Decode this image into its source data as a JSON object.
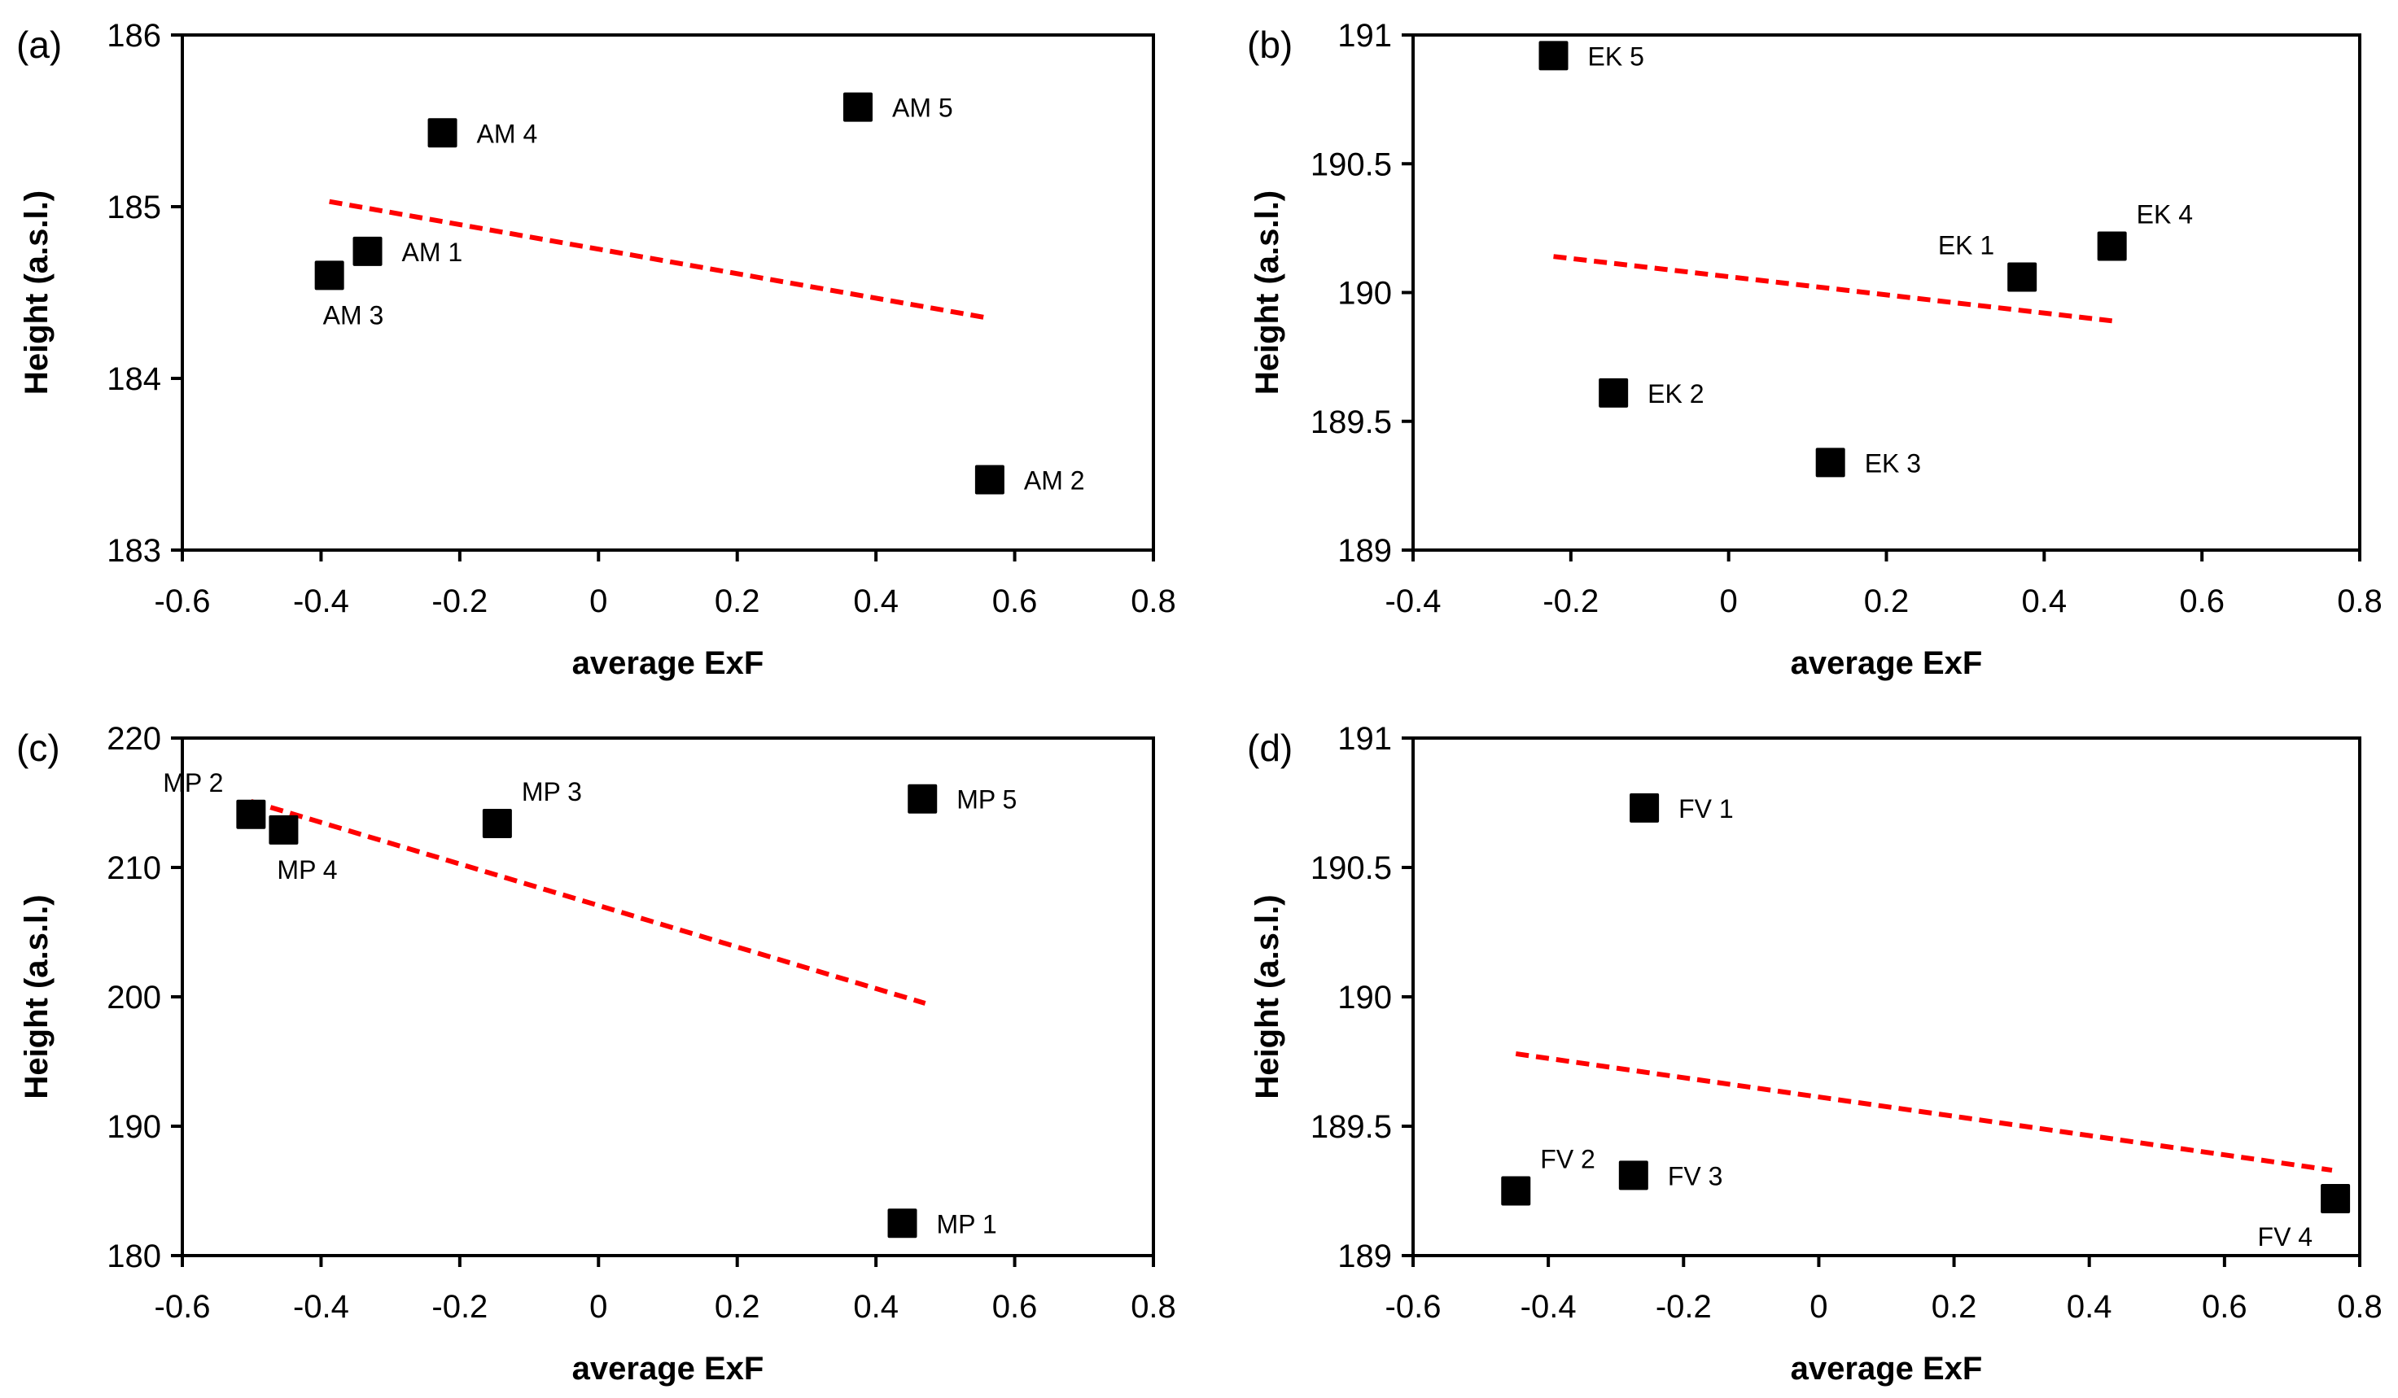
{
  "chart_data": [
    {
      "panel": "(a)",
      "type": "scatter",
      "xlabel": "average ExF",
      "ylabel": "Height (a.s.l.)",
      "xlim": [
        -0.6,
        0.8
      ],
      "ylim": [
        183,
        186
      ],
      "xticks": [
        "-0.6",
        "-0.4",
        "-0.2",
        "0",
        "0.2",
        "0.4",
        "0.6",
        "0.8"
      ],
      "xtick_values": [
        -0.6,
        -0.4,
        -0.2,
        0,
        0.2,
        0.4,
        0.6,
        0.8
      ],
      "yticks": [
        "183",
        "184",
        "185",
        "186"
      ],
      "ytick_values": [
        183,
        184,
        185,
        186
      ],
      "grid": false,
      "marker": "square",
      "marker_color": "#000000",
      "points": [
        {
          "label": "AM 1",
          "x": -0.333,
          "y": 184.74,
          "label_pos": "right"
        },
        {
          "label": "AM 2",
          "x": 0.564,
          "y": 183.41,
          "label_pos": "right"
        },
        {
          "label": "AM 3",
          "x": -0.388,
          "y": 184.6,
          "label_pos": "below"
        },
        {
          "label": "AM 4",
          "x": -0.225,
          "y": 185.43,
          "label_pos": "right"
        },
        {
          "label": "AM 5",
          "x": 0.374,
          "y": 185.58,
          "label_pos": "right"
        }
      ],
      "trendline": {
        "color": "#ff0000",
        "style": "dashed",
        "x": [
          -0.388,
          0.564
        ],
        "y": [
          185.03,
          184.35
        ]
      }
    },
    {
      "panel": "(b)",
      "type": "scatter",
      "xlabel": "average ExF",
      "ylabel": "Height (a.s.l.)",
      "xlim": [
        -0.4,
        0.8
      ],
      "ylim": [
        189,
        191
      ],
      "xticks": [
        "-0.4",
        "-0.2",
        "0",
        "0.2",
        "0.4",
        "0.6",
        "0.8"
      ],
      "xtick_values": [
        -0.4,
        -0.2,
        0,
        0.2,
        0.4,
        0.6,
        0.8
      ],
      "yticks": [
        "189",
        "189.5",
        "190",
        "190.5",
        "191"
      ],
      "ytick_values": [
        189,
        189.5,
        190,
        190.5,
        191
      ],
      "grid": false,
      "marker": "square",
      "marker_color": "#000000",
      "points": [
        {
          "label": "EK 1",
          "x": 0.372,
          "y": 190.06,
          "label_pos": "upper-left"
        },
        {
          "label": "EK 2",
          "x": -0.146,
          "y": 189.61,
          "label_pos": "right"
        },
        {
          "label": "EK 3",
          "x": 0.129,
          "y": 189.34,
          "label_pos": "right"
        },
        {
          "label": "EK 4",
          "x": 0.486,
          "y": 190.18,
          "label_pos": "upper-right"
        },
        {
          "label": "EK 5",
          "x": -0.222,
          "y": 190.92,
          "label_pos": "right"
        }
      ],
      "trendline": {
        "color": "#ff0000",
        "style": "dashed",
        "x": [
          -0.222,
          0.486
        ],
        "y": [
          190.14,
          189.89
        ]
      }
    },
    {
      "panel": "(c)",
      "type": "scatter",
      "xlabel": "average ExF",
      "ylabel": "Height (a.s.l.)",
      "xlim": [
        -0.6,
        0.8
      ],
      "ylim": [
        180,
        220
      ],
      "xticks": [
        "-0.6",
        "-0.4",
        "-0.2",
        "0",
        "0.2",
        "0.4",
        "0.6",
        "0.8"
      ],
      "xtick_values": [
        -0.6,
        -0.4,
        -0.2,
        0,
        0.2,
        0.4,
        0.6,
        0.8
      ],
      "yticks": [
        "180",
        "190",
        "200",
        "210",
        "220"
      ],
      "ytick_values": [
        180,
        190,
        200,
        210,
        220
      ],
      "grid": false,
      "marker": "square",
      "marker_color": "#000000",
      "points": [
        {
          "label": "MP 1",
          "x": 0.438,
          "y": 182.5,
          "label_pos": "right"
        },
        {
          "label": "MP 2",
          "x": -0.501,
          "y": 214.1,
          "label_pos": "upper-left"
        },
        {
          "label": "MP 3",
          "x": -0.146,
          "y": 213.4,
          "label_pos": "upper-right"
        },
        {
          "label": "MP 4",
          "x": -0.454,
          "y": 212.9,
          "label_pos": "below"
        },
        {
          "label": "MP 5",
          "x": 0.467,
          "y": 215.3,
          "label_pos": "right"
        }
      ],
      "trendline": {
        "color": "#ff0000",
        "style": "dashed",
        "x": [
          -0.501,
          0.471
        ],
        "y": [
          215.1,
          199.5
        ]
      }
    },
    {
      "panel": "(d)",
      "type": "scatter",
      "xlabel": "average ExF",
      "ylabel": "Height (a.s.l.)",
      "xlim": [
        -0.6,
        0.8
      ],
      "ylim": [
        189,
        191
      ],
      "xticks": [
        "-0.6",
        "-0.4",
        "-0.2",
        "0",
        "0.2",
        "0.4",
        "0.6",
        "0.8"
      ],
      "xtick_values": [
        -0.6,
        -0.4,
        -0.2,
        0,
        0.2,
        0.4,
        0.6,
        0.8
      ],
      "yticks": [
        "189",
        "189.5",
        "190",
        "190.5",
        "191"
      ],
      "ytick_values": [
        189,
        189.5,
        190,
        190.5,
        191
      ],
      "grid": false,
      "marker": "square",
      "marker_color": "#000000",
      "points": [
        {
          "label": "FV 1",
          "x": -0.258,
          "y": 190.73,
          "label_pos": "right"
        },
        {
          "label": "FV 2",
          "x": -0.448,
          "y": 189.25,
          "label_pos": "upper-right"
        },
        {
          "label": "FV 3",
          "x": -0.274,
          "y": 189.31,
          "label_pos": "right"
        },
        {
          "label": "FV 4",
          "x": 0.764,
          "y": 189.22,
          "label_pos": "lower-left"
        }
      ],
      "trendline": {
        "color": "#ff0000",
        "style": "dashed",
        "x": [
          -0.448,
          0.759
        ],
        "y": [
          189.78,
          189.33
        ]
      }
    }
  ]
}
